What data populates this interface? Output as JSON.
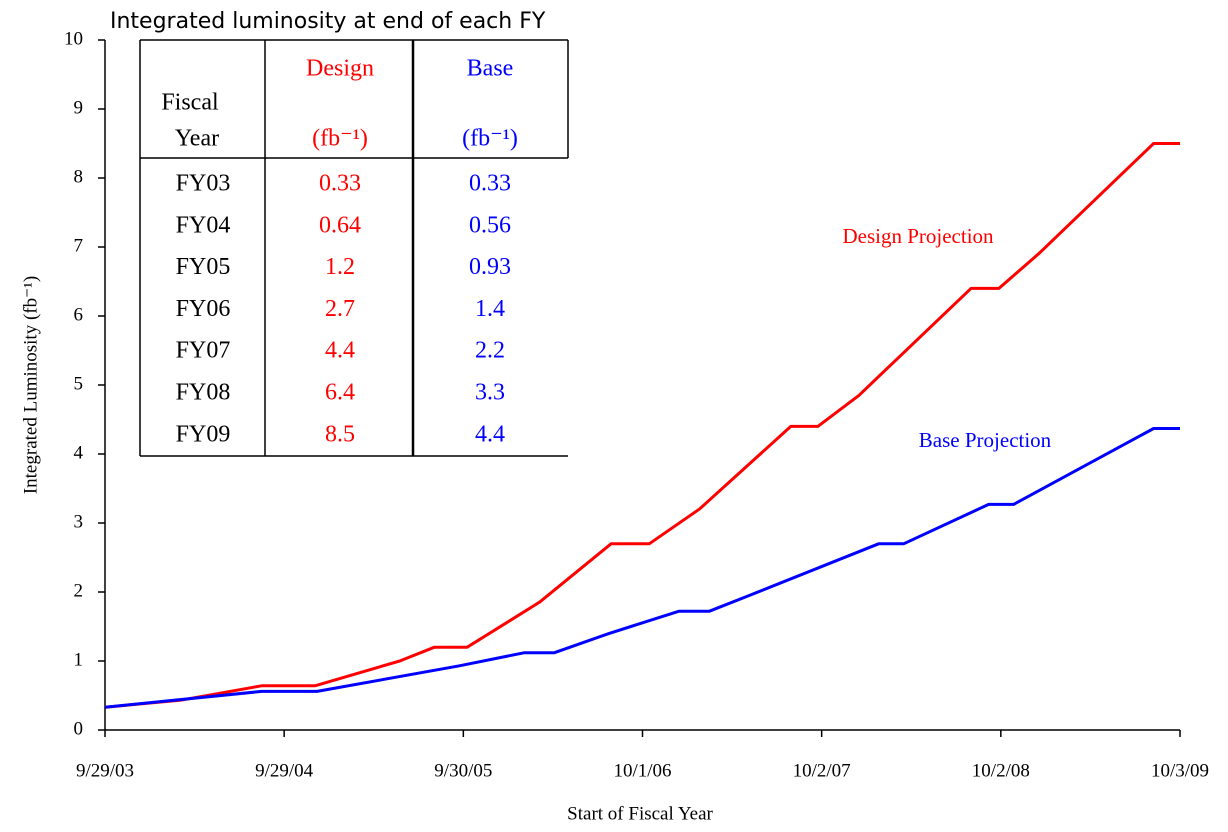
{
  "chart_data": {
    "type": "line",
    "title": "Integrated luminosity at end of each FY",
    "x_label": "Start of Fiscal Year",
    "y_label": "Integrated Luminosity  (fb⁻¹)",
    "xlim": [
      "9/29/03",
      "10/3/09"
    ],
    "xticks": [
      "9/29/03",
      "9/29/04",
      "9/30/05",
      "10/1/06",
      "10/2/07",
      "10/2/08",
      "10/3/09"
    ],
    "ylim": [
      0,
      10
    ],
    "yticks": [
      0,
      1,
      2,
      3,
      4,
      5,
      6,
      7,
      8,
      9,
      10
    ],
    "series": [
      {
        "name": "Design",
        "color": "#ff0000",
        "x": [
          "9/29/03",
          "2/29/04",
          "8/14/04",
          "12/1/04",
          "5/23/05",
          "8/2/05",
          "10/8/05",
          "3/4/06",
          "7/29/06",
          "10/15/06",
          "1/25/07",
          "7/31/07",
          "9/24/07",
          "12/17/07",
          "8/2/08",
          "9/28/08",
          "12/18/08",
          "8/10/09",
          "10/3/09"
        ],
        "values": [
          0.33,
          0.43,
          0.64,
          0.64,
          1.0,
          1.2,
          1.2,
          1.85,
          2.7,
          2.7,
          3.2,
          4.4,
          4.4,
          4.85,
          6.4,
          6.4,
          6.9,
          8.5,
          8.5
        ]
      },
      {
        "name": "Base",
        "color": "#0000ff",
        "x": [
          "9/29/03",
          "8/14/04",
          "12/5/04",
          "9/22/05",
          "2/2/06",
          "4/4/06",
          "7/25/06",
          "12/14/06",
          "2/14/07",
          "5/7/07",
          "1/27/08",
          "3/18/08",
          "9/7/08",
          "10/28/08",
          "8/10/09",
          "10/3/09"
        ],
        "values": [
          0.33,
          0.56,
          0.56,
          0.93,
          1.12,
          1.12,
          1.4,
          1.72,
          1.72,
          1.95,
          2.7,
          2.7,
          3.27,
          3.27,
          4.37,
          4.37
        ]
      }
    ],
    "annotations": [
      {
        "text": "Design Projection",
        "color": "#ff0000"
      },
      {
        "text": "Base Projection",
        "color": "#0000ff"
      }
    ],
    "table": {
      "header": [
        "Fiscal",
        "Year"
      ],
      "columns": [
        {
          "name": "Design",
          "unit": "(fb⁻¹)",
          "color": "#ff0000"
        },
        {
          "name": "Base",
          "unit": "(fb⁻¹)",
          "color": "#0000ff"
        }
      ],
      "rows": [
        [
          "FY03",
          "0.33",
          "0.33"
        ],
        [
          "FY04",
          "0.64",
          "0.56"
        ],
        [
          "FY05",
          "1.2",
          "0.93"
        ],
        [
          "FY06",
          "2.7",
          "1.4"
        ],
        [
          "FY07",
          "4.4",
          "2.2"
        ],
        [
          "FY08",
          "6.4",
          "3.3"
        ],
        [
          "FY09",
          "8.5",
          "4.4"
        ]
      ]
    }
  }
}
